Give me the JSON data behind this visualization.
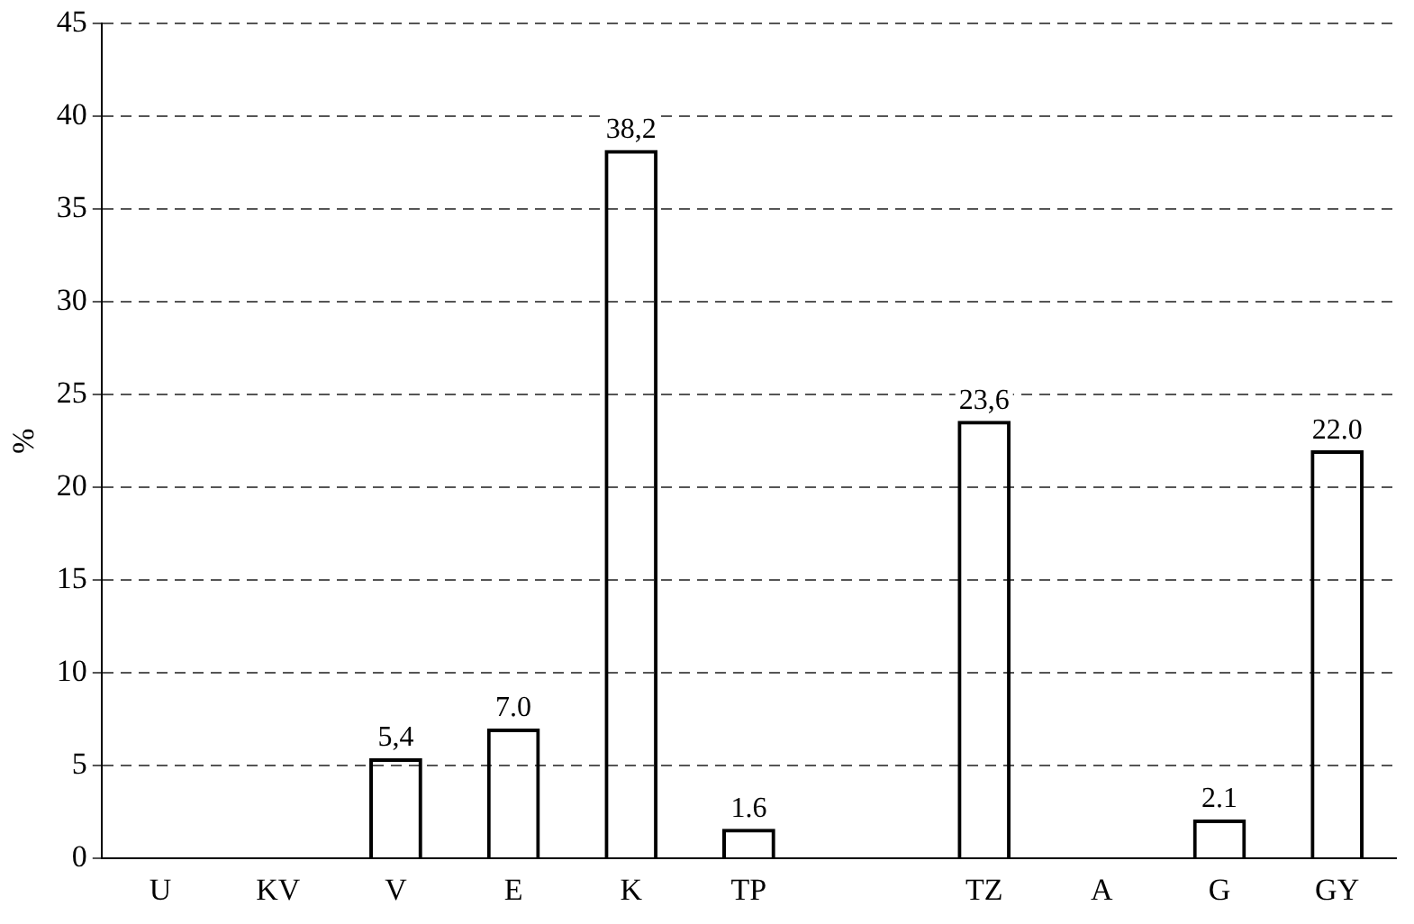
{
  "chart_data": {
    "type": "bar",
    "ylabel": "%",
    "categories": [
      "U",
      "KV",
      "V",
      "E",
      "K",
      "TP",
      null,
      "TZ",
      "A",
      "G",
      "GY"
    ],
    "values": [
      0,
      0,
      5.4,
      7.0,
      38.2,
      1.6,
      null,
      23.6,
      0,
      2.1,
      22.0
    ],
    "value_labels": [
      null,
      null,
      "5,4",
      "7.0",
      "38,2",
      "1.6",
      null,
      "23,6",
      null,
      "2.1",
      "22.0"
    ],
    "color": "#000000",
    "ylim": [
      0,
      45
    ],
    "yticks": [
      0,
      5,
      10,
      15,
      20,
      25,
      30,
      35,
      40,
      45
    ],
    "grid": "y",
    "legend": false
  }
}
